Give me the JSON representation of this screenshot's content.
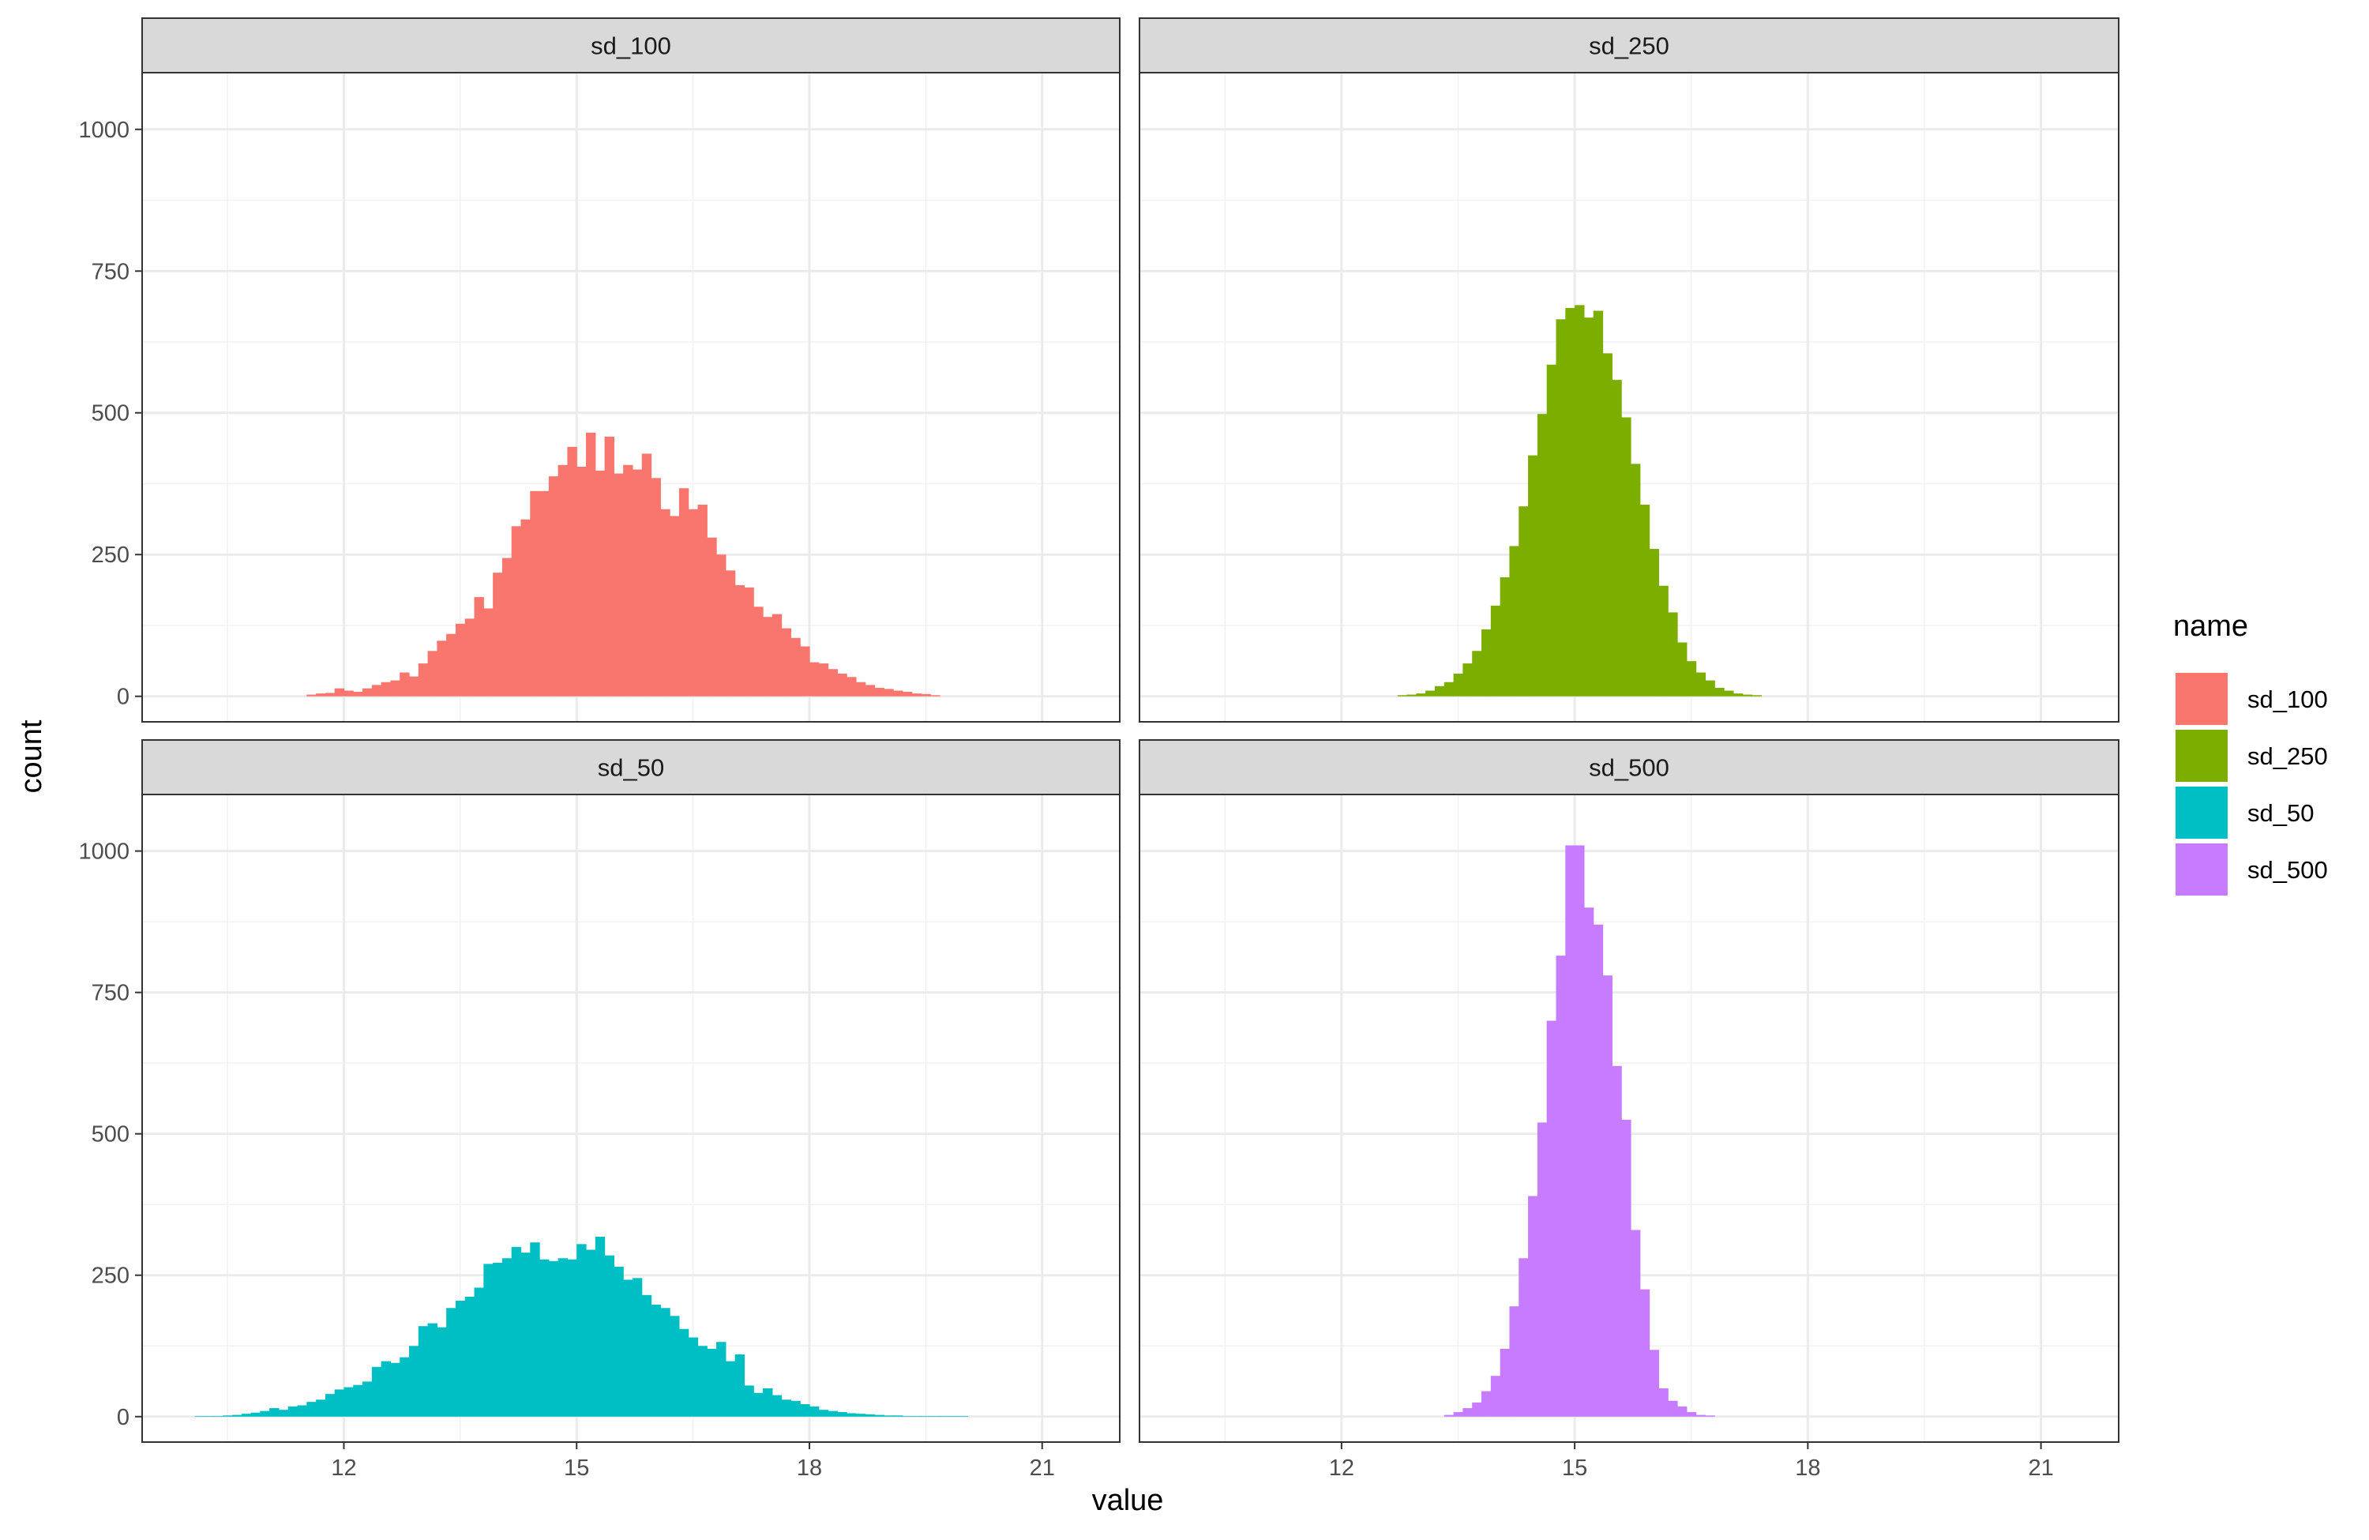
{
  "chart_data": {
    "type": "bar",
    "subtype": "faceted-histogram",
    "xlabel": "value",
    "ylabel": "count",
    "x_ticks": [
      12,
      15,
      18,
      21
    ],
    "x_range": [
      9.4,
      22.0
    ],
    "y_ticks": [
      0,
      250,
      500,
      750,
      1000
    ],
    "y_range": [
      -45,
      1100
    ],
    "bin_width": 0.12,
    "grid": true,
    "legend": {
      "title": "name",
      "position": "right",
      "items": [
        {
          "label": "sd_100",
          "color": "#F8766D"
        },
        {
          "label": "sd_250",
          "color": "#7CAE00"
        },
        {
          "label": "sd_50",
          "color": "#00BFC4"
        },
        {
          "label": "sd_500",
          "color": "#C77CFF"
        }
      ]
    },
    "facets": [
      {
        "name": "sd_100",
        "color": "#F8766D",
        "bin_start": 11.52,
        "counts": [
          3,
          5,
          6,
          14,
          10,
          8,
          14,
          20,
          25,
          28,
          42,
          35,
          58,
          80,
          98,
          110,
          128,
          137,
          175,
          155,
          218,
          244,
          300,
          312,
          362,
          362,
          388,
          408,
          440,
          405,
          465,
          398,
          458,
          393,
          408,
          400,
          428,
          385,
          330,
          318,
          367,
          330,
          338,
          280,
          250,
          222,
          196,
          192,
          158,
          140,
          145,
          120,
          103,
          88,
          60,
          58,
          48,
          40,
          34,
          25,
          20,
          15,
          13,
          10,
          8,
          5,
          4,
          2
        ]
      },
      {
        "name": "sd_250",
        "color": "#7CAE00",
        "bin_start": 12.72,
        "counts": [
          2,
          3,
          5,
          10,
          18,
          25,
          40,
          58,
          80,
          118,
          160,
          210,
          265,
          335,
          425,
          498,
          585,
          665,
          685,
          690,
          668,
          680,
          605,
          558,
          492,
          410,
          338,
          260,
          195,
          148,
          95,
          62,
          42,
          28,
          15,
          10,
          5,
          3,
          2
        ]
      },
      {
        "name": "sd_50",
        "color": "#00BFC4",
        "bin_start": 10.08,
        "counts": [
          1,
          1,
          1,
          2,
          3,
          5,
          7,
          10,
          15,
          12,
          18,
          20,
          26,
          30,
          40,
          48,
          52,
          56,
          62,
          88,
          98,
          95,
          105,
          125,
          160,
          165,
          158,
          192,
          205,
          212,
          228,
          270,
          272,
          280,
          300,
          290,
          308,
          278,
          275,
          280,
          278,
          305,
          295,
          318,
          285,
          265,
          242,
          245,
          215,
          198,
          192,
          178,
          155,
          140,
          125,
          120,
          132,
          98,
          110,
          55,
          42,
          50,
          38,
          30,
          28,
          22,
          18,
          12,
          10,
          8,
          6,
          5,
          4,
          3,
          2,
          2,
          1,
          1,
          1,
          1,
          1,
          1,
          1
        ]
      },
      {
        "name": "sd_500",
        "color": "#C77CFF",
        "bin_start": 13.32,
        "counts": [
          3,
          8,
          15,
          25,
          45,
          72,
          120,
          195,
          280,
          390,
          520,
          700,
          815,
          1010,
          1010,
          900,
          870,
          780,
          620,
          525,
          330,
          225,
          118,
          50,
          28,
          18,
          8,
          3,
          2
        ]
      }
    ]
  }
}
